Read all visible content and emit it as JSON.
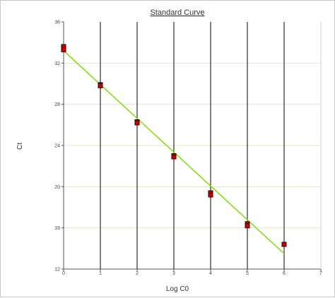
{
  "chart_data": {
    "type": "scatter",
    "title": "Standard Curve",
    "xlabel": "Log C0",
    "ylabel": "Ct",
    "xlim": [
      0,
      7
    ],
    "ylim": [
      12,
      36
    ],
    "x_ticks": [
      "0",
      "1",
      "2",
      "3",
      "4",
      "5",
      "6",
      "7"
    ],
    "y_ticks": [
      "12",
      "16",
      "20",
      "24",
      "28",
      "32",
      "36"
    ],
    "grid": true,
    "series": [
      {
        "values": [
          {
            "x": 0,
            "y": 33.6
          },
          {
            "x": 0,
            "y": 33.3
          },
          {
            "x": 1,
            "y": 29.9
          },
          {
            "x": 1,
            "y": 29.8
          },
          {
            "x": 2,
            "y": 26.3
          },
          {
            "x": 2,
            "y": 26.2
          },
          {
            "x": 3,
            "y": 23.0
          },
          {
            "x": 3,
            "y": 22.9
          },
          {
            "x": 4,
            "y": 19.4
          },
          {
            "x": 4,
            "y": 19.2
          },
          {
            "x": 5,
            "y": 16.4
          },
          {
            "x": 5,
            "y": 16.2
          },
          {
            "x": 6,
            "y": 14.4
          }
        ]
      }
    ],
    "fit_line": {
      "x": [
        0,
        6
      ],
      "y": [
        33.2,
        13.5
      ]
    },
    "colors": {
      "point_fill": "#cc0000",
      "point_stroke": "#330000",
      "fit_line": "#7fdc00",
      "vertical_grid": "#000000",
      "horizontal_grid": "#e2e6c6",
      "axis": "#555555"
    }
  }
}
